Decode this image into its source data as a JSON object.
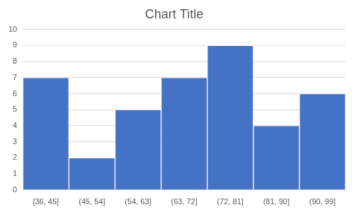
{
  "chart_data": {
    "type": "histogram",
    "title": "Chart Title",
    "categories": [
      "[36, 45]",
      "(45, 54]",
      "(54, 63]",
      "(63, 72]",
      "(72, 81]",
      "(81, 90]",
      "(90, 99]"
    ],
    "values": [
      7,
      2,
      5,
      7,
      9,
      4,
      6
    ],
    "color": "#4472c4",
    "ylim": [
      0,
      10
    ],
    "yticks": [
      0,
      1,
      2,
      3,
      4,
      5,
      6,
      7,
      8,
      9,
      10
    ],
    "grid": true
  }
}
